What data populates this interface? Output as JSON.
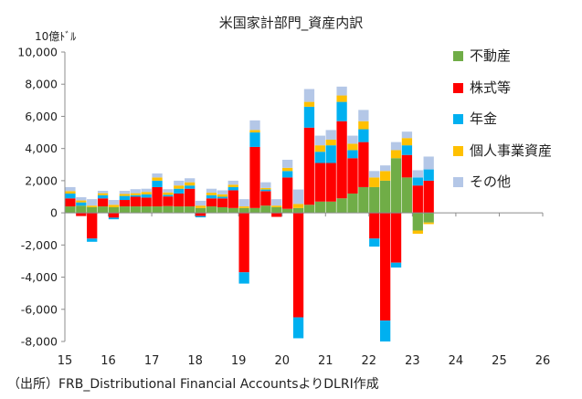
{
  "chart_data": {
    "type": "bar",
    "stacked": true,
    "title": "米国家計部門_資産内訳",
    "unit_label": "10億ﾄﾞﾙ",
    "ylim": [
      -8000,
      10000
    ],
    "y_ticks": [
      10000,
      8000,
      6000,
      4000,
      2000,
      0,
      -2000,
      -4000,
      -6000,
      -8000
    ],
    "y_tick_labels": [
      "10,000",
      "8,000",
      "6,000",
      "4,000",
      "2,000",
      "0",
      "-2,000",
      "-4,000",
      "-6,000",
      "-8,000"
    ],
    "x_range": [
      2015,
      2026
    ],
    "x_ticks": [
      2015,
      2016,
      2017,
      2018,
      2019,
      2020,
      2021,
      2022,
      2023,
      2024,
      2025,
      2026
    ],
    "x_tick_labels": [
      "15",
      "16",
      "17",
      "18",
      "19",
      "20",
      "21",
      "22",
      "23",
      "24",
      "25",
      "26"
    ],
    "x_label_position": "bottom",
    "grid": false,
    "legend_position": "right",
    "quarters": [
      "2015Q1",
      "2015Q2",
      "2015Q3",
      "2015Q4",
      "2016Q1",
      "2016Q2",
      "2016Q3",
      "2016Q4",
      "2017Q1",
      "2017Q2",
      "2017Q3",
      "2017Q4",
      "2018Q1",
      "2018Q2",
      "2018Q3",
      "2018Q4",
      "2019Q1",
      "2019Q2",
      "2019Q3",
      "2019Q4",
      "2020Q1",
      "2020Q2",
      "2020Q3",
      "2020Q4",
      "2021Q1",
      "2021Q2",
      "2021Q3",
      "2021Q4",
      "2022Q1",
      "2022Q2",
      "2022Q3",
      "2022Q4",
      "2023Q1",
      "2023Q2"
    ],
    "series": [
      {
        "name": "不動産",
        "color": "#70ad47",
        "values": [
          400,
          450,
          350,
          400,
          350,
          400,
          400,
          400,
          400,
          420,
          400,
          400,
          300,
          400,
          350,
          300,
          300,
          300,
          450,
          350,
          250,
          300,
          500,
          700,
          700,
          900,
          1200,
          1600,
          1600,
          2000,
          3400,
          2200,
          -1100,
          -600
        ]
      },
      {
        "name": "株式等",
        "color": "#ff0000",
        "values": [
          500,
          -200,
          -1600,
          500,
          -300,
          400,
          600,
          550,
          1200,
          600,
          800,
          1100,
          -200,
          500,
          550,
          1100,
          -3700,
          3800,
          900,
          -250,
          1950,
          -6500,
          4800,
          2400,
          2400,
          4800,
          2200,
          2800,
          -1600,
          -6700,
          -3100,
          1400,
          1700,
          2000
        ]
      },
      {
        "name": "年金",
        "color": "#00b0f0",
        "values": [
          300,
          200,
          -200,
          200,
          -100,
          250,
          100,
          200,
          400,
          100,
          300,
          200,
          -80,
          200,
          100,
          200,
          -700,
          900,
          100,
          0,
          400,
          -1300,
          1300,
          700,
          1100,
          1200,
          500,
          800,
          -500,
          -1300,
          -300,
          600,
          500,
          700
        ]
      },
      {
        "name": "個人事業資産",
        "color": "#ffc000",
        "values": [
          150,
          120,
          100,
          120,
          150,
          120,
          120,
          150,
          200,
          150,
          200,
          200,
          150,
          150,
          150,
          150,
          100,
          150,
          100,
          100,
          200,
          250,
          300,
          400,
          350,
          400,
          400,
          500,
          600,
          600,
          500,
          450,
          -200,
          -100
        ]
      },
      {
        "name": "その他",
        "color": "#b4c7e7",
        "values": [
          250,
          200,
          400,
          150,
          300,
          200,
          250,
          200,
          250,
          200,
          300,
          250,
          300,
          250,
          250,
          250,
          450,
          600,
          350,
          400,
          500,
          900,
          800,
          600,
          600,
          550,
          500,
          700,
          400,
          350,
          500,
          400,
          450,
          800
        ]
      }
    ]
  },
  "source_note": "（出所）FRB_Distributional Financial AccountsよりDLRI作成"
}
